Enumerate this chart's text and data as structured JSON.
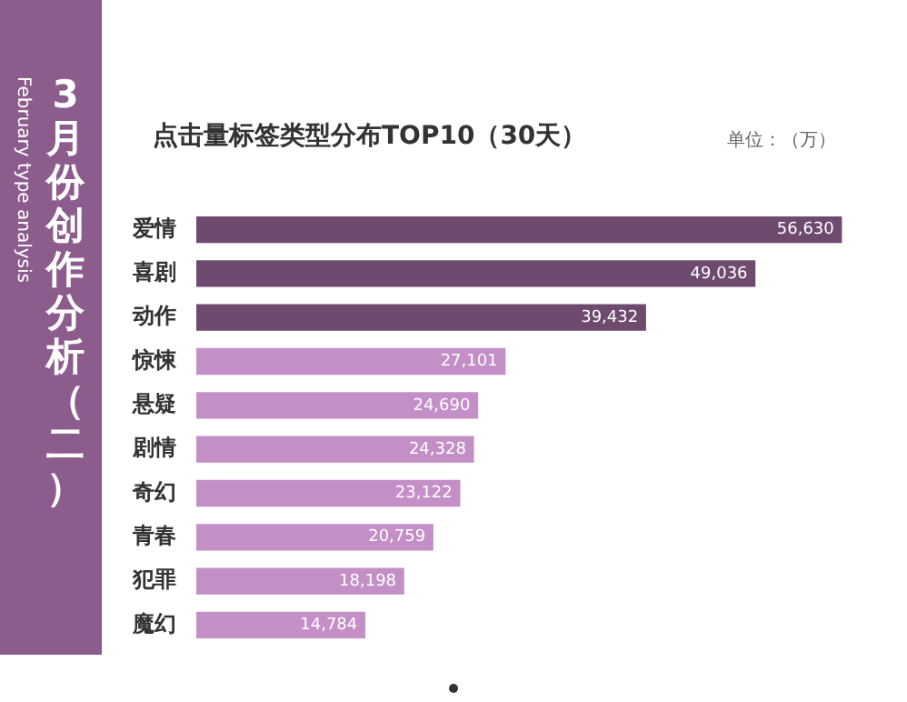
{
  "chart_data": {
    "type": "bar",
    "orientation": "horizontal",
    "title": "点击量标签类型分布TOP10（30天）",
    "annotations": [
      "单位：（万）",
      "3月份创作分析（二）",
      "February type analysis"
    ],
    "categories": [
      "爱情",
      "喜剧",
      "动作",
      "惊悚",
      "悬疑",
      "剧情",
      "奇幻",
      "青春",
      "犯罪",
      "魔幻"
    ],
    "values": [
      56630,
      49036,
      39432,
      27101,
      24690,
      24328,
      23122,
      20759,
      18198,
      14784
    ],
    "value_labels": [
      "56,630",
      "49,036",
      "39,432",
      "27,101",
      "24,690",
      "24,328",
      "23,122",
      "20,759",
      "18,198",
      "14,784"
    ],
    "colors": [
      "#6e4a6e",
      "#6e4a6e",
      "#6e4a6e",
      "#c48fc6",
      "#c48fc6",
      "#c48fc6",
      "#c48fc6",
      "#c48fc6",
      "#c48fc6",
      "#c48fc6"
    ],
    "legend": false,
    "tick_labels": "y"
  }
}
